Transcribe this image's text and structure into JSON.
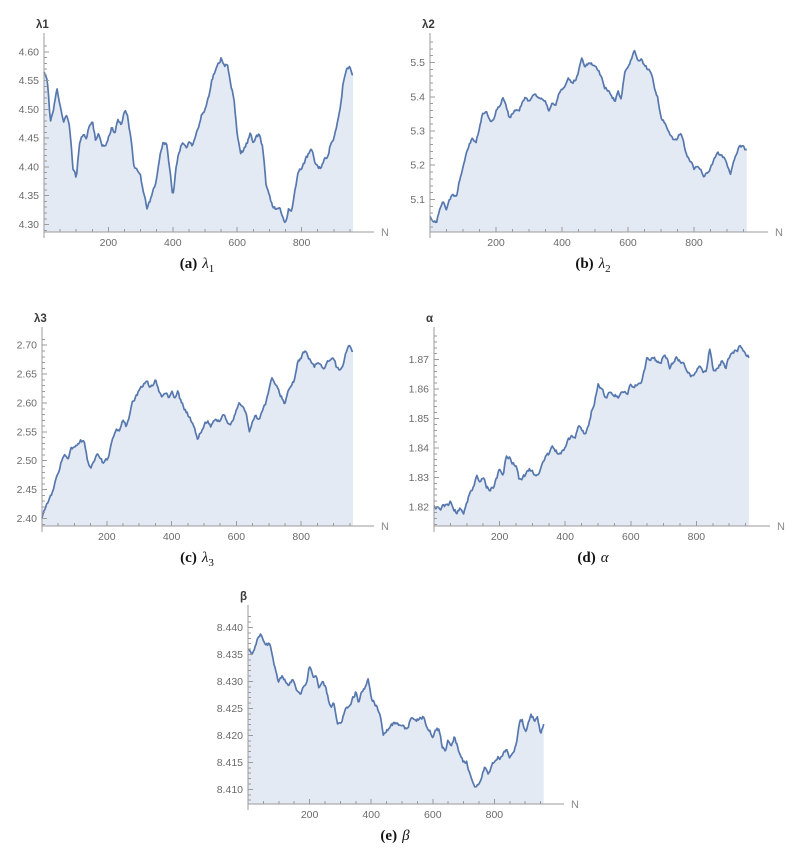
{
  "style": {
    "background": "#ffffff",
    "line_color": "#5678ae",
    "fill_color": "#e4eaf3",
    "axis_color": "#9b9b9b",
    "tick_label_color": "#6b6b6b",
    "ylabel_color": "#3a3a3a",
    "xlabel_color": "#8a8a8a",
    "caption_color": "#131313"
  },
  "chart_data": [
    {
      "id": "lambda1",
      "type": "area",
      "ylabel": "λ1",
      "xlabel": "N",
      "caption_prefix": "(a)",
      "caption_symbol": "λ",
      "caption_sub": "1",
      "xlim": [
        0,
        1000
      ],
      "ylim": [
        4.287,
        4.617
      ],
      "xticks": [
        200,
        400,
        600,
        800
      ],
      "xtick_labels": [
        "200",
        "400",
        "600",
        "800"
      ],
      "x_minor_step": 50,
      "yticks": [
        4.3,
        4.35,
        4.4,
        4.45,
        4.5,
        4.55,
        4.6
      ],
      "ytick_labels": [
        "4.30",
        "4.35",
        "4.40",
        "4.45",
        "4.50",
        "4.55",
        "4.60"
      ],
      "y_minor_step": 0.01,
      "x_start": 0,
      "x_step": 10,
      "noise_amp": 0.007,
      "y": [
        4.565,
        4.55,
        4.48,
        4.5,
        4.535,
        4.51,
        4.48,
        4.49,
        4.465,
        4.4,
        4.38,
        4.44,
        4.455,
        4.45,
        4.47,
        4.48,
        4.45,
        4.455,
        4.44,
        4.435,
        4.45,
        4.47,
        4.46,
        4.48,
        4.47,
        4.5,
        4.49,
        4.45,
        4.4,
        4.39,
        4.385,
        4.35,
        4.33,
        4.34,
        4.36,
        4.38,
        4.42,
        4.445,
        4.44,
        4.4,
        4.345,
        4.4,
        4.43,
        4.44,
        4.43,
        4.445,
        4.44,
        4.455,
        4.47,
        4.49,
        4.5,
        4.52,
        4.55,
        4.565,
        4.575,
        4.59,
        4.58,
        4.575,
        4.54,
        4.52,
        4.46,
        4.42,
        4.43,
        4.44,
        4.455,
        4.44,
        4.46,
        4.455,
        4.43,
        4.37,
        4.355,
        4.33,
        4.325,
        4.33,
        4.315,
        4.305,
        4.33,
        4.325,
        4.36,
        4.39,
        4.4,
        4.41,
        4.42,
        4.43,
        4.41,
        4.4,
        4.4,
        4.41,
        4.42,
        4.44,
        4.45,
        4.47,
        4.5,
        4.55,
        4.57,
        4.575,
        4.56
      ]
    },
    {
      "id": "lambda2",
      "type": "area",
      "ylabel": "λ2",
      "xlabel": "N",
      "caption_prefix": "(b)",
      "caption_symbol": "λ",
      "caption_sub": "2",
      "xlim": [
        0,
        1000
      ],
      "ylim": [
        5.005,
        5.56
      ],
      "xticks": [
        200,
        400,
        600,
        800
      ],
      "xtick_labels": [
        "200",
        "400",
        "600",
        "800"
      ],
      "x_minor_step": 50,
      "yticks": [
        5.1,
        5.2,
        5.3,
        5.4,
        5.5
      ],
      "ytick_labels": [
        "5.1",
        "5.2",
        "5.3",
        "5.4",
        "5.5"
      ],
      "y_minor_step": 0.02,
      "x_start": 0,
      "x_step": 10,
      "noise_amp": 0.01,
      "y": [
        5.05,
        5.04,
        5.03,
        5.08,
        5.1,
        5.07,
        5.1,
        5.12,
        5.11,
        5.16,
        5.2,
        5.24,
        5.27,
        5.28,
        5.27,
        5.31,
        5.35,
        5.36,
        5.33,
        5.33,
        5.36,
        5.37,
        5.4,
        5.38,
        5.34,
        5.35,
        5.36,
        5.36,
        5.38,
        5.4,
        5.39,
        5.4,
        5.41,
        5.4,
        5.39,
        5.38,
        5.36,
        5.38,
        5.37,
        5.41,
        5.42,
        5.43,
        5.45,
        5.44,
        5.45,
        5.47,
        5.52,
        5.49,
        5.5,
        5.5,
        5.49,
        5.48,
        5.46,
        5.43,
        5.42,
        5.4,
        5.39,
        5.41,
        5.4,
        5.47,
        5.48,
        5.51,
        5.53,
        5.5,
        5.51,
        5.49,
        5.48,
        5.47,
        5.43,
        5.4,
        5.34,
        5.33,
        5.3,
        5.29,
        5.27,
        5.28,
        5.3,
        5.26,
        5.22,
        5.21,
        5.19,
        5.2,
        5.19,
        5.17,
        5.18,
        5.19,
        5.21,
        5.24,
        5.23,
        5.22,
        5.2,
        5.17,
        5.21,
        5.24,
        5.26,
        5.25,
        5.24
      ]
    },
    {
      "id": "lambda3",
      "type": "area",
      "ylabel": "λ3",
      "xlabel": "N",
      "caption_prefix": "(c)",
      "caption_symbol": "λ",
      "caption_sub": "3",
      "xlim": [
        0,
        1000
      ],
      "ylim": [
        2.387,
        2.716
      ],
      "xticks": [
        200,
        400,
        600,
        800
      ],
      "xtick_labels": [
        "200",
        "400",
        "600",
        "800"
      ],
      "x_minor_step": 50,
      "yticks": [
        2.4,
        2.45,
        2.5,
        2.55,
        2.6,
        2.65,
        2.7
      ],
      "ytick_labels": [
        "2.40",
        "2.45",
        "2.50",
        "2.55",
        "2.60",
        "2.65",
        "2.70"
      ],
      "y_minor_step": 0.01,
      "x_start": 0,
      "x_step": 10,
      "noise_amp": 0.006,
      "y": [
        2.4,
        2.42,
        2.43,
        2.44,
        2.46,
        2.48,
        2.5,
        2.51,
        2.5,
        2.52,
        2.52,
        2.53,
        2.535,
        2.53,
        2.5,
        2.49,
        2.5,
        2.51,
        2.5,
        2.495,
        2.5,
        2.52,
        2.54,
        2.55,
        2.555,
        2.57,
        2.56,
        2.58,
        2.6,
        2.61,
        2.62,
        2.63,
        2.64,
        2.63,
        2.63,
        2.64,
        2.62,
        2.61,
        2.62,
        2.61,
        2.62,
        2.61,
        2.62,
        2.6,
        2.59,
        2.58,
        2.57,
        2.56,
        2.535,
        2.55,
        2.56,
        2.57,
        2.56,
        2.57,
        2.57,
        2.57,
        2.58,
        2.57,
        2.56,
        2.57,
        2.59,
        2.6,
        2.595,
        2.58,
        2.55,
        2.57,
        2.58,
        2.57,
        2.59,
        2.6,
        2.62,
        2.645,
        2.63,
        2.62,
        2.61,
        2.6,
        2.62,
        2.63,
        2.64,
        2.67,
        2.68,
        2.69,
        2.68,
        2.67,
        2.66,
        2.67,
        2.67,
        2.66,
        2.67,
        2.67,
        2.68,
        2.66,
        2.66,
        2.67,
        2.69,
        2.7,
        2.69
      ]
    },
    {
      "id": "alpha",
      "type": "area",
      "ylabel": "α",
      "xlabel": "N",
      "caption_prefix": "(d)",
      "caption_symbol": "α",
      "caption_sub": "",
      "xlim": [
        0,
        1000
      ],
      "ylim": [
        1.8135,
        1.878
      ],
      "xticks": [
        200,
        400,
        600,
        800
      ],
      "xtick_labels": [
        "200",
        "400",
        "600",
        "800"
      ],
      "x_minor_step": 50,
      "yticks": [
        1.82,
        1.83,
        1.84,
        1.85,
        1.86,
        1.87
      ],
      "ytick_labels": [
        "1.82",
        "1.83",
        "1.84",
        "1.85",
        "1.86",
        "1.87"
      ],
      "y_minor_step": 0.002,
      "x_start": 0,
      "x_step": 10,
      "noise_amp": 0.0013,
      "y": [
        1.82,
        1.82,
        1.819,
        1.821,
        1.82,
        1.822,
        1.819,
        1.818,
        1.819,
        1.818,
        1.822,
        1.825,
        1.827,
        1.83,
        1.828,
        1.83,
        1.827,
        1.826,
        1.827,
        1.829,
        1.833,
        1.83,
        1.837,
        1.837,
        1.835,
        1.834,
        1.829,
        1.83,
        1.831,
        1.833,
        1.832,
        1.831,
        1.832,
        1.834,
        1.837,
        1.838,
        1.84,
        1.839,
        1.838,
        1.839,
        1.84,
        1.843,
        1.844,
        1.843,
        1.847,
        1.846,
        1.845,
        1.847,
        1.852,
        1.856,
        1.862,
        1.86,
        1.858,
        1.858,
        1.859,
        1.858,
        1.857,
        1.858,
        1.859,
        1.858,
        1.862,
        1.86,
        1.862,
        1.862,
        1.866,
        1.871,
        1.87,
        1.871,
        1.869,
        1.868,
        1.872,
        1.87,
        1.867,
        1.869,
        1.871,
        1.869,
        1.868,
        1.866,
        1.865,
        1.864,
        1.866,
        1.868,
        1.866,
        1.865,
        1.875,
        1.867,
        1.866,
        1.868,
        1.87,
        1.867,
        1.871,
        1.872,
        1.873,
        1.874,
        1.873,
        1.872,
        1.871
      ]
    },
    {
      "id": "beta",
      "type": "area",
      "ylabel": "β",
      "xlabel": "N",
      "caption_prefix": "(e)",
      "caption_symbol": "β",
      "caption_sub": "",
      "xlim": [
        0,
        1000
      ],
      "ylim": [
        8.4073,
        8.4425
      ],
      "xticks": [
        200,
        400,
        600,
        800
      ],
      "xtick_labels": [
        "200",
        "400",
        "600",
        "800"
      ],
      "x_minor_step": 50,
      "yticks": [
        8.41,
        8.415,
        8.42,
        8.425,
        8.43,
        8.435,
        8.44
      ],
      "ytick_labels": [
        "8.410",
        "8.415",
        "8.420",
        "8.425",
        "8.430",
        "8.435",
        "8.440"
      ],
      "y_minor_step": 0.001,
      "x_start": 0,
      "x_step": 10,
      "noise_amp": 0.0007,
      "y": [
        8.436,
        8.435,
        8.436,
        8.438,
        8.439,
        8.438,
        8.437,
        8.437,
        8.435,
        8.432,
        8.43,
        8.431,
        8.43,
        8.429,
        8.43,
        8.43,
        8.428,
        8.428,
        8.429,
        8.43,
        8.433,
        8.431,
        8.431,
        8.429,
        8.43,
        8.429,
        8.427,
        8.425,
        8.426,
        8.422,
        8.422,
        8.424,
        8.425,
        8.426,
        8.427,
        8.428,
        8.426,
        8.428,
        8.429,
        8.43,
        8.427,
        8.426,
        8.425,
        8.424,
        8.42,
        8.421,
        8.421,
        8.422,
        8.4225,
        8.422,
        8.422,
        8.421,
        8.421,
        8.4235,
        8.423,
        8.423,
        8.4235,
        8.4235,
        8.422,
        8.421,
        8.42,
        8.421,
        8.421,
        8.418,
        8.417,
        8.419,
        8.418,
        8.42,
        8.418,
        8.416,
        8.415,
        8.415,
        8.413,
        8.411,
        8.41,
        8.411,
        8.413,
        8.414,
        8.413,
        8.414,
        8.415,
        8.416,
        8.416,
        8.417,
        8.417,
        8.416,
        8.417,
        8.418,
        8.422,
        8.423,
        8.421,
        8.422,
        8.4235,
        8.423,
        8.4235,
        8.42,
        8.422
      ]
    }
  ]
}
